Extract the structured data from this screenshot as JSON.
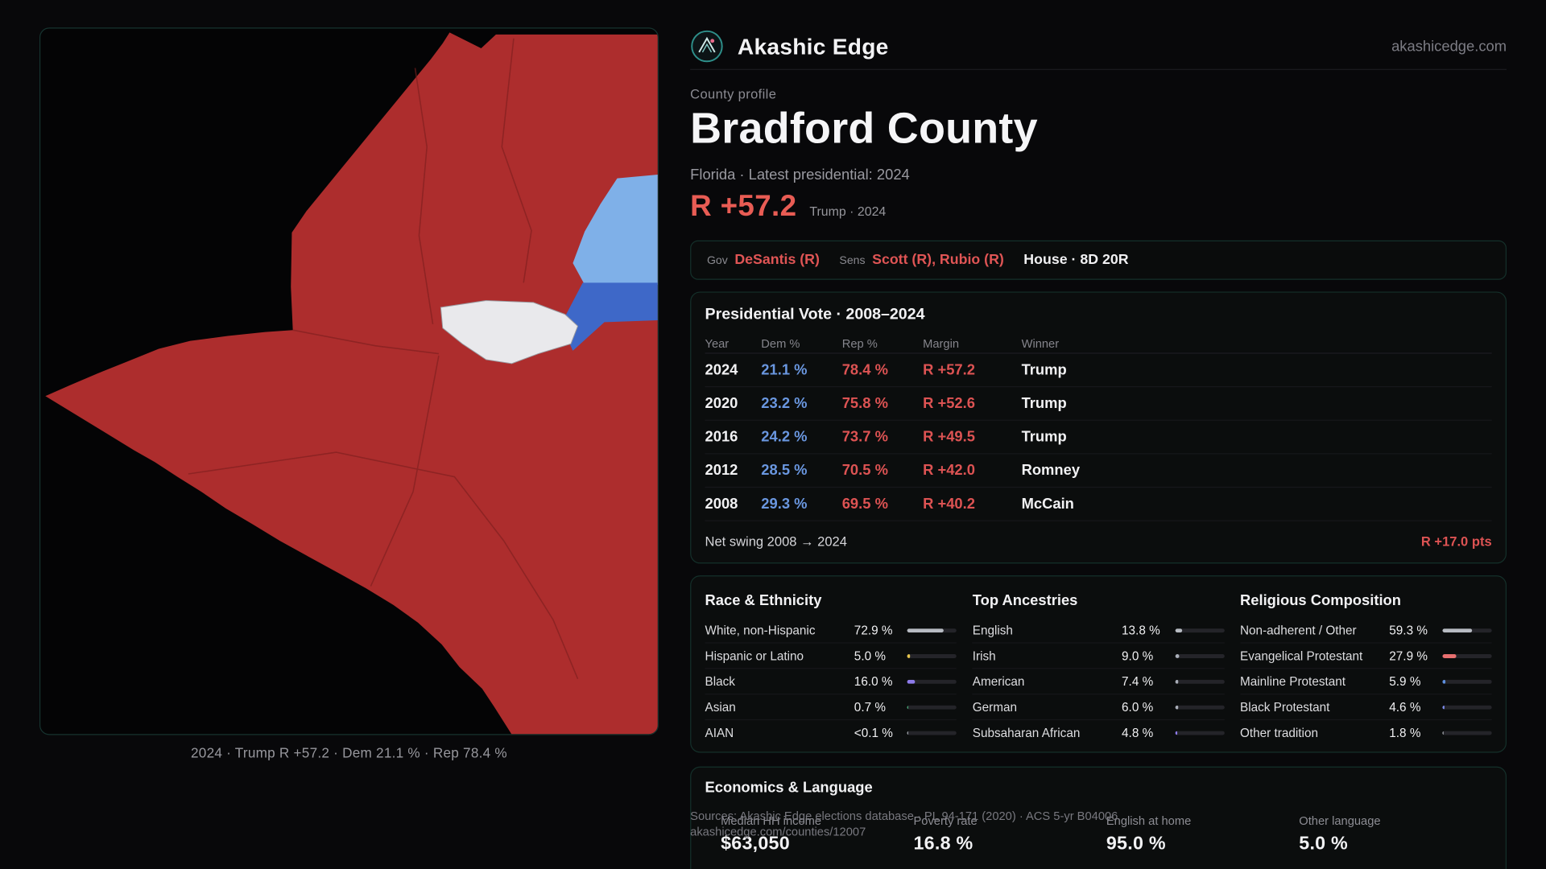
{
  "header": {
    "brand": "Akashic Edge",
    "site": "akashicedge.com",
    "logo_icon": "akashic-edge-logo"
  },
  "profile": {
    "eyebrow": "County profile",
    "title": "Bradford County",
    "subtitle": "Florida · Latest presidential: 2024",
    "margin_value": "R +57.2",
    "margin_caption": "Trump · 2024"
  },
  "officials": {
    "gov_label": "Gov",
    "gov_value": "DeSantis (R)",
    "sens_label": "Sens",
    "sens_value": "Scott (R), Rubio (R)",
    "house_value": "House · 8D 20R"
  },
  "presidential_vote": {
    "title": "Presidential Vote · 2008–2024",
    "columns": [
      "Year",
      "Dem %",
      "Rep %",
      "Margin",
      "Winner"
    ],
    "rows": [
      {
        "year": "2024",
        "dem": "21.1 %",
        "rep": "78.4 %",
        "margin": "R +57.2",
        "winner": "Trump"
      },
      {
        "year": "2020",
        "dem": "23.2 %",
        "rep": "75.8 %",
        "margin": "R +52.6",
        "winner": "Trump"
      },
      {
        "year": "2016",
        "dem": "24.2 %",
        "rep": "73.7 %",
        "margin": "R +49.5",
        "winner": "Trump"
      },
      {
        "year": "2012",
        "dem": "28.5 %",
        "rep": "70.5 %",
        "margin": "R +42.0",
        "winner": "Romney"
      },
      {
        "year": "2008",
        "dem": "29.3 %",
        "rep": "69.5 %",
        "margin": "R +40.2",
        "winner": "McCain"
      }
    ],
    "net_swing_label": "Net swing 2008 → 2024",
    "net_swing_value": "R +17.0 pts"
  },
  "demographics": {
    "race": {
      "title": "Race & Ethnicity",
      "rows": [
        {
          "label": "White, non-Hispanic",
          "value": "72.9 %",
          "pct": 72.9,
          "color": "#b7bbc2"
        },
        {
          "label": "Hispanic or Latino",
          "value": "5.0 %",
          "pct": 5.0,
          "color": "#e6c44d"
        },
        {
          "label": "Black",
          "value": "16.0 %",
          "pct": 16.0,
          "color": "#8d7bea"
        },
        {
          "label": "Asian",
          "value": "0.7 %",
          "pct": 0.7,
          "color": "#4fc487"
        },
        {
          "label": "AIAN",
          "value": "<0.1 %",
          "pct": 0.1,
          "color": "#b7bbc2"
        }
      ]
    },
    "ancestries": {
      "title": "Top Ancestries",
      "rows": [
        {
          "label": "English",
          "value": "13.8 %",
          "pct": 13.8,
          "color": "#b7bbc2"
        },
        {
          "label": "Irish",
          "value": "9.0 %",
          "pct": 9.0,
          "color": "#a9aeb8"
        },
        {
          "label": "American",
          "value": "7.4 %",
          "pct": 7.4,
          "color": "#a9aeb8"
        },
        {
          "label": "German",
          "value": "6.0 %",
          "pct": 6.0,
          "color": "#a9aeb8"
        },
        {
          "label": "Subsaharan African",
          "value": "4.8 %",
          "pct": 4.8,
          "color": "#8d7bea"
        }
      ]
    },
    "religion": {
      "title": "Religious Composition",
      "rows": [
        {
          "label": "Non-adherent / Other",
          "value": "59.3 %",
          "pct": 59.3,
          "color": "#b7bbc2"
        },
        {
          "label": "Evangelical Protestant",
          "value": "27.9 %",
          "pct": 27.9,
          "color": "#e87070"
        },
        {
          "label": "Mainline Protestant",
          "value": "5.9 %",
          "pct": 5.9,
          "color": "#5d8fdd"
        },
        {
          "label": "Black Protestant",
          "value": "4.6 %",
          "pct": 4.6,
          "color": "#7d8bea"
        },
        {
          "label": "Other tradition",
          "value": "1.8 %",
          "pct": 1.8,
          "color": "#b7bbc2"
        }
      ]
    }
  },
  "economics": {
    "title": "Economics & Language",
    "stats": [
      {
        "label": "Median HH income",
        "value": "$63,050"
      },
      {
        "label": "Poverty rate",
        "value": "16.8 %"
      },
      {
        "label": "English at home",
        "value": "95.0 %"
      },
      {
        "label": "Other language",
        "value": "5.0 %"
      }
    ]
  },
  "footer": {
    "sources": "Sources: Akashic Edge elections database · PL 94-171 (2020) · ACS 5-yr B04006",
    "permalink": "akashicedge.com/counties/12007"
  },
  "map": {
    "caption": "2024 · Trump R +57.2 · Dem 21.1 % · Rep 78.4 %",
    "colors": {
      "rep": "#ad2d2d",
      "rep_line": "#7e1f1f",
      "dem_light": "#7fb0e8",
      "dem_dark": "#3e68c8",
      "other": "#e9e9ec"
    }
  }
}
